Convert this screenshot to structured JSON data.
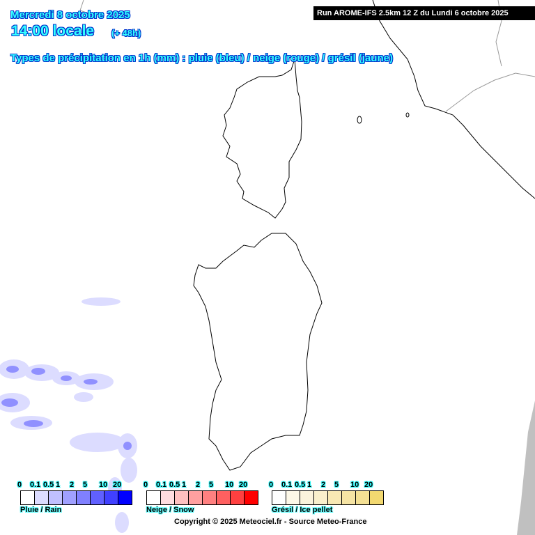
{
  "header": {
    "date": "Mercredi 8 octobre 2025",
    "time": "14:00 locale",
    "offset": "(+ 48h)",
    "subtitle": "Types de précipitation en 1h (mm) : pluie (bleu) / neige (rouge) / grésil (jaune)",
    "run": "Run AROME-IFS 2.5km 12 Z du Lundi 6 octobre 2025"
  },
  "legend": {
    "ticks": [
      "0",
      "0.1",
      "0.5",
      "1",
      "2",
      "5",
      "10",
      "20"
    ],
    "scales": [
      {
        "name": "Pluie / Rain",
        "colors": [
          "#ffffff",
          "#dcdcff",
          "#c0c0ff",
          "#a0a0ff",
          "#8080ff",
          "#6060ff",
          "#4040ff",
          "#0000ff"
        ]
      },
      {
        "name": "Neige / Snow",
        "colors": [
          "#ffffff",
          "#ffdde0",
          "#ffc0c0",
          "#ffa0a0",
          "#ff8080",
          "#ff6060",
          "#ff4040",
          "#ff0000"
        ]
      },
      {
        "name": "Grésil / Ice pellet",
        "colors": [
          "#ffffff",
          "#fdf8e8",
          "#fcf3dc",
          "#faefcc",
          "#f8e8b4",
          "#f6e4a4",
          "#f4e094",
          "#f2d870"
        ]
      }
    ]
  },
  "copyright": "Copyright © 2025 Meteociel.fr - Source Meteo-France",
  "colors": {
    "title_fill": "#33ffff",
    "title_outline": "#0033cc",
    "coastline": "#000000",
    "border": "#888888",
    "no_data": "#c0c0c0"
  }
}
